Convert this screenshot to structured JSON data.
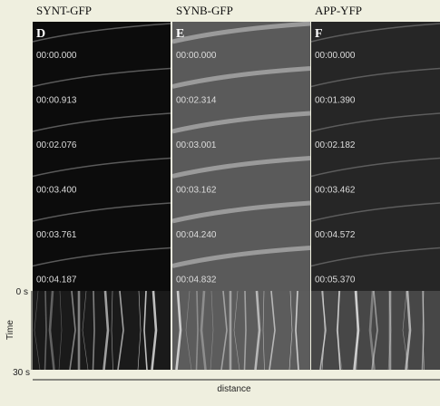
{
  "panels": [
    {
      "title": "SYNT-GFP",
      "letter": "D",
      "timestamps": [
        "00:00.000",
        "00:00.913",
        "00:02.076",
        "00:03.400",
        "00:03.761",
        "00:04.187"
      ]
    },
    {
      "title": "SYNB-GFP",
      "letter": "E",
      "timestamps": [
        "00:00.000",
        "00:02.314",
        "00:03.001",
        "00:03.162",
        "00:04.240",
        "00:04.832"
      ]
    },
    {
      "title": "APP-YFP",
      "letter": "F",
      "timestamps": [
        "00:00.000",
        "00:01.390",
        "00:02.182",
        "00:03.462",
        "00:04.572",
        "00:05.370"
      ]
    }
  ],
  "kymograph": {
    "y_label": "Time",
    "y_start": "0 s",
    "y_end": "30 s",
    "x_label": "distance"
  }
}
